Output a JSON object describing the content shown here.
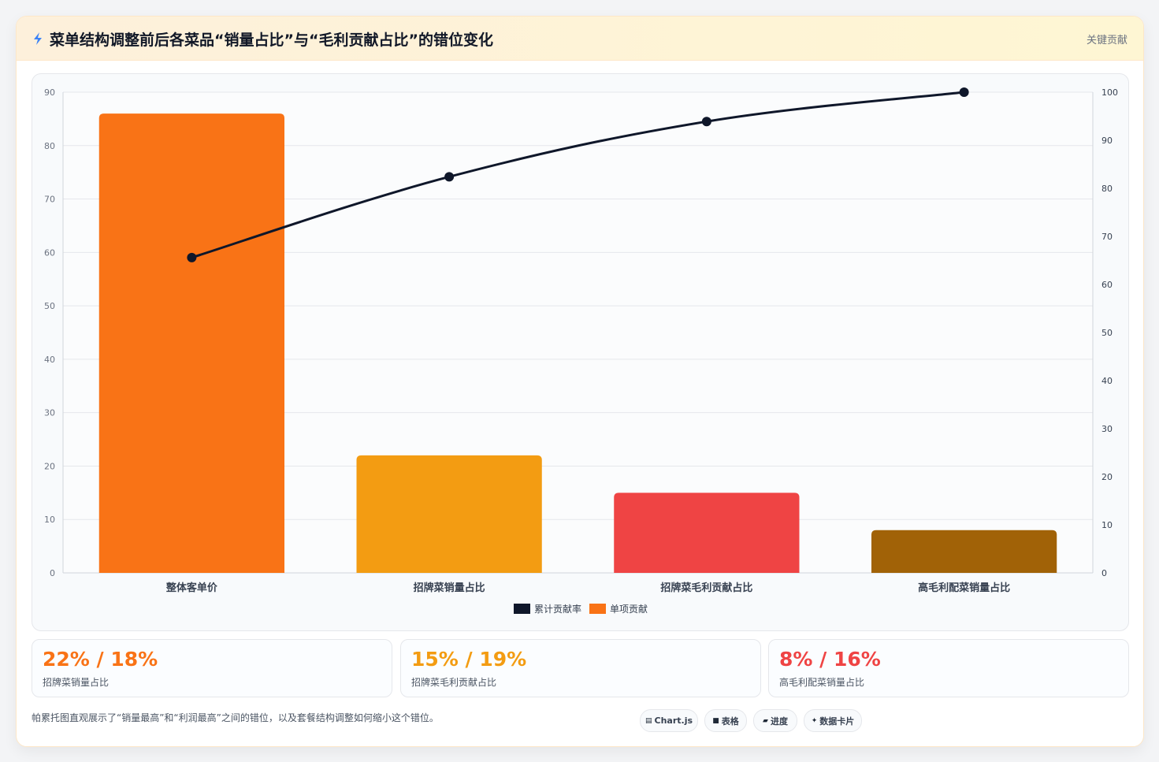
{
  "header": {
    "title": "菜单结构调整前后各菜品“销量占比”与“毛利贡献占比”的错位变化",
    "tag": "关键贡献"
  },
  "chart_data": {
    "type": "bar",
    "categories": [
      "整体客单价",
      "招牌菜销量占比",
      "招牌菜毛利贡献占比",
      "高毛利配菜销量占比"
    ],
    "series": [
      {
        "name": "单项贡献",
        "type": "bar",
        "axis": "left",
        "values": [
          86,
          22,
          15,
          8
        ],
        "colors": [
          "#f97316",
          "#f39c12",
          "#ef4444",
          "#a16207"
        ]
      },
      {
        "name": "累计贡献率",
        "type": "line",
        "axis": "right",
        "values": [
          65.6,
          82.4,
          93.9,
          100
        ],
        "color": "#0f172a"
      }
    ],
    "y_left": {
      "min": 0,
      "max": 90,
      "ticks": [
        0,
        10,
        20,
        30,
        40,
        50,
        60,
        70,
        80,
        90
      ]
    },
    "y_right": {
      "min": 0,
      "max": 100,
      "ticks": [
        0,
        10,
        20,
        30,
        40,
        50,
        60,
        70,
        80,
        90,
        100
      ]
    },
    "legend": [
      {
        "label": "累计贡献率",
        "color": "#0f172a"
      },
      {
        "label": "单项贡献",
        "color": "#f97316"
      }
    ],
    "legend_position": "bottom",
    "grid": true
  },
  "stats": [
    {
      "value": "22% / 18%",
      "label": "招牌菜销量占比",
      "color": "#f97316"
    },
    {
      "value": "15% / 19%",
      "label": "招牌菜毛利贡献占比",
      "color": "#f39c12"
    },
    {
      "value": "8% / 16%",
      "label": "高毛利配菜销量占比",
      "color": "#ef4444"
    }
  ],
  "note": "帕累托图直观展示了“销量最高”和“利润最高”之间的错位，以及套餐结构调整如何缩小这个错位。",
  "pills": [
    {
      "icon": "▤",
      "label": "Chart.js"
    },
    {
      "icon": "■",
      "label": "表格"
    },
    {
      "icon": "▰",
      "label": "进度"
    },
    {
      "icon": "✦",
      "label": "数据卡片"
    }
  ]
}
